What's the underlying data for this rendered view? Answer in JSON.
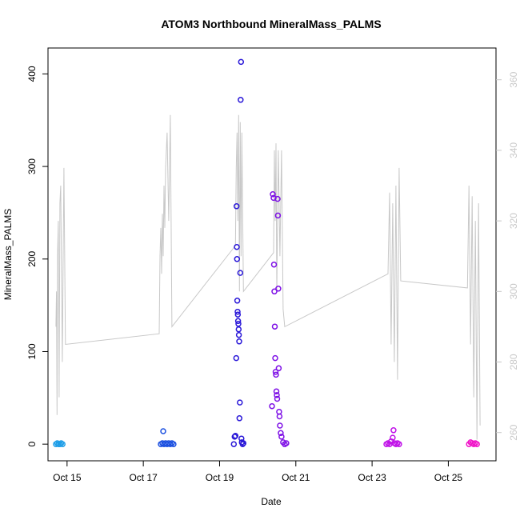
{
  "chart_data": {
    "type": "scatter",
    "title": "ATOM3 Northbound MineralMass_PALMS",
    "xlabel": "Date",
    "ylabel": "MineralMass_PALMS",
    "grid": false,
    "x_ticks": [
      {
        "date": "2017-10-15",
        "label": "Oct 15"
      },
      {
        "date": "2017-10-17",
        "label": "Oct 17"
      },
      {
        "date": "2017-10-19",
        "label": "Oct 19"
      },
      {
        "date": "2017-10-21",
        "label": "Oct 21"
      },
      {
        "date": "2017-10-23",
        "label": "Oct 23"
      },
      {
        "date": "2017-10-25",
        "label": "Oct 25"
      }
    ],
    "xlim": [
      "2017-10-14T12:00",
      "2017-10-26T06:00"
    ],
    "y_left": {
      "ticks": [
        "0",
        "100",
        "200",
        "300",
        "400"
      ],
      "ylim": [
        -18,
        428
      ]
    },
    "y_right": {
      "ticks": [
        "260",
        "280",
        "300",
        "320",
        "340",
        "360"
      ],
      "ylim": [
        252,
        369
      ],
      "color": "#c8c8c8"
    },
    "series": [
      {
        "color": "#1e9ee8",
        "points": [
          [
            "2017-10-14T17:00",
            0
          ],
          [
            "2017-10-14T17:50",
            1
          ],
          [
            "2017-10-14T18:40",
            0
          ],
          [
            "2017-10-14T19:30",
            0
          ],
          [
            "2017-10-14T20:20",
            1
          ],
          [
            "2017-10-14T21:10",
            0
          ]
        ]
      },
      {
        "color": "#1a4fe0",
        "points": [
          [
            "2017-10-17T11:00",
            0
          ],
          [
            "2017-10-17T12:00",
            1
          ],
          [
            "2017-10-17T12:30",
            14
          ],
          [
            "2017-10-17T13:00",
            0
          ],
          [
            "2017-10-17T14:00",
            1
          ],
          [
            "2017-10-17T15:00",
            0
          ],
          [
            "2017-10-17T16:00",
            1
          ],
          [
            "2017-10-17T17:00",
            0
          ],
          [
            "2017-10-17T18:00",
            1
          ],
          [
            "2017-10-17T19:00",
            0
          ]
        ]
      },
      {
        "color": "#2a18d8",
        "points": [
          [
            "2017-10-19T09:00",
            0
          ],
          [
            "2017-10-19T09:30",
            8
          ],
          [
            "2017-10-19T10:00",
            9
          ],
          [
            "2017-10-19T10:30",
            93
          ],
          [
            "2017-10-19T10:40",
            257
          ],
          [
            "2017-10-19T10:50",
            213
          ],
          [
            "2017-10-19T11:00",
            200
          ],
          [
            "2017-10-19T11:10",
            155
          ],
          [
            "2017-10-19T11:20",
            143
          ],
          [
            "2017-10-19T11:30",
            140
          ],
          [
            "2017-10-19T11:40",
            133
          ],
          [
            "2017-10-19T11:50",
            130
          ],
          [
            "2017-10-19T12:00",
            124
          ],
          [
            "2017-10-19T12:10",
            118
          ],
          [
            "2017-10-19T12:20",
            111
          ],
          [
            "2017-10-19T12:30",
            28
          ],
          [
            "2017-10-19T12:45",
            45
          ],
          [
            "2017-10-19T13:00",
            185
          ],
          [
            "2017-10-19T13:15",
            372
          ],
          [
            "2017-10-19T13:30",
            413
          ],
          [
            "2017-10-19T13:45",
            6
          ],
          [
            "2017-10-19T14:00",
            2
          ],
          [
            "2017-10-19T14:30",
            0
          ],
          [
            "2017-10-19T15:00",
            1
          ]
        ]
      },
      {
        "color": "#7e10e6",
        "points": [
          [
            "2017-10-20T09:00",
            41
          ],
          [
            "2017-10-20T09:30",
            270
          ],
          [
            "2017-10-20T10:00",
            266
          ],
          [
            "2017-10-20T10:15",
            194
          ],
          [
            "2017-10-20T10:30",
            165
          ],
          [
            "2017-10-20T10:45",
            127
          ],
          [
            "2017-10-20T11:00",
            93
          ],
          [
            "2017-10-20T11:15",
            78
          ],
          [
            "2017-10-20T11:30",
            75
          ],
          [
            "2017-10-20T11:45",
            57
          ],
          [
            "2017-10-20T12:00",
            53
          ],
          [
            "2017-10-20T12:15",
            49
          ],
          [
            "2017-10-20T12:30",
            265
          ],
          [
            "2017-10-20T12:45",
            247
          ],
          [
            "2017-10-20T13:00",
            168
          ],
          [
            "2017-10-20T13:15",
            82
          ],
          [
            "2017-10-20T13:30",
            35
          ],
          [
            "2017-10-20T13:45",
            30
          ],
          [
            "2017-10-20T14:00",
            20
          ],
          [
            "2017-10-20T14:30",
            12
          ],
          [
            "2017-10-20T15:00",
            8
          ],
          [
            "2017-10-20T16:00",
            2
          ],
          [
            "2017-10-20T17:00",
            0
          ],
          [
            "2017-10-20T18:00",
            1
          ]
        ]
      },
      {
        "color": "#c012e8",
        "points": [
          [
            "2017-10-23T09:00",
            0
          ],
          [
            "2017-10-23T10:00",
            1
          ],
          [
            "2017-10-23T11:00",
            0
          ],
          [
            "2017-10-23T12:00",
            3
          ],
          [
            "2017-10-23T13:00",
            7
          ],
          [
            "2017-10-23T13:30",
            15
          ],
          [
            "2017-10-23T14:00",
            1
          ],
          [
            "2017-10-23T15:00",
            0
          ],
          [
            "2017-10-23T16:00",
            1
          ],
          [
            "2017-10-23T17:00",
            0
          ]
        ]
      },
      {
        "color": "#f014c8",
        "points": [
          [
            "2017-10-25T13:00",
            0
          ],
          [
            "2017-10-25T14:00",
            2
          ],
          [
            "2017-10-25T15:00",
            1
          ],
          [
            "2017-10-25T16:00",
            0
          ],
          [
            "2017-10-25T17:00",
            1
          ],
          [
            "2017-10-25T18:00",
            0
          ]
        ]
      }
    ],
    "line_series": {
      "axis": "right",
      "color": "#c8c8c8",
      "points": [
        [
          "2017-10-14T17:00",
          290
        ],
        [
          "2017-10-14T17:20",
          300
        ],
        [
          "2017-10-14T17:40",
          265
        ],
        [
          "2017-10-14T18:00",
          310
        ],
        [
          "2017-10-14T18:30",
          320
        ],
        [
          "2017-10-14T19:00",
          270
        ],
        [
          "2017-10-14T19:30",
          325
        ],
        [
          "2017-10-14T20:00",
          330
        ],
        [
          "2017-10-14T21:00",
          280
        ],
        [
          "2017-10-14T22:00",
          335
        ],
        [
          "2017-10-14T23:00",
          285
        ],
        [
          "2017-10-17T10:00",
          288
        ],
        [
          "2017-10-17T10:30",
          310
        ],
        [
          "2017-10-17T11:00",
          318
        ],
        [
          "2017-10-17T11:30",
          305
        ],
        [
          "2017-10-17T12:00",
          322
        ],
        [
          "2017-10-17T12:30",
          310
        ],
        [
          "2017-10-17T13:00",
          330
        ],
        [
          "2017-10-17T13:30",
          318
        ],
        [
          "2017-10-17T14:00",
          335
        ],
        [
          "2017-10-17T15:00",
          345
        ],
        [
          "2017-10-17T16:00",
          320
        ],
        [
          "2017-10-17T17:00",
          350
        ],
        [
          "2017-10-17T18:00",
          290
        ],
        [
          "2017-10-19T10:00",
          313
        ],
        [
          "2017-10-19T10:30",
          335
        ],
        [
          "2017-10-19T11:00",
          345
        ],
        [
          "2017-10-19T11:30",
          320
        ],
        [
          "2017-10-19T12:00",
          350
        ],
        [
          "2017-10-19T12:30",
          300
        ],
        [
          "2017-10-19T13:00",
          348
        ],
        [
          "2017-10-19T13:30",
          310
        ],
        [
          "2017-10-19T14:00",
          345
        ],
        [
          "2017-10-19T15:00",
          300
        ],
        [
          "2017-10-20T10:00",
          311
        ],
        [
          "2017-10-20T10:30",
          340
        ],
        [
          "2017-10-20T11:00",
          320
        ],
        [
          "2017-10-20T11:30",
          342
        ],
        [
          "2017-10-20T12:00",
          300
        ],
        [
          "2017-10-20T13:00",
          340
        ],
        [
          "2017-10-20T14:00",
          310
        ],
        [
          "2017-10-20T15:00",
          340
        ],
        [
          "2017-10-20T16:00",
          295
        ],
        [
          "2017-10-20T17:00",
          290
        ],
        [
          "2017-10-23T10:00",
          305
        ],
        [
          "2017-10-23T11:00",
          328
        ],
        [
          "2017-10-23T12:00",
          285
        ],
        [
          "2017-10-23T13:00",
          325
        ],
        [
          "2017-10-23T14:00",
          280
        ],
        [
          "2017-10-23T15:00",
          330
        ],
        [
          "2017-10-23T16:00",
          275
        ],
        [
          "2017-10-23T17:00",
          335
        ],
        [
          "2017-10-23T18:00",
          303
        ],
        [
          "2017-10-25T12:00",
          301
        ],
        [
          "2017-10-25T13:00",
          330
        ],
        [
          "2017-10-25T14:00",
          285
        ],
        [
          "2017-10-25T15:00",
          327
        ],
        [
          "2017-10-25T16:00",
          270
        ],
        [
          "2017-10-25T17:00",
          320
        ],
        [
          "2017-10-25T18:00",
          258
        ],
        [
          "2017-10-25T19:00",
          325
        ],
        [
          "2017-10-25T20:00",
          262
        ]
      ]
    }
  }
}
